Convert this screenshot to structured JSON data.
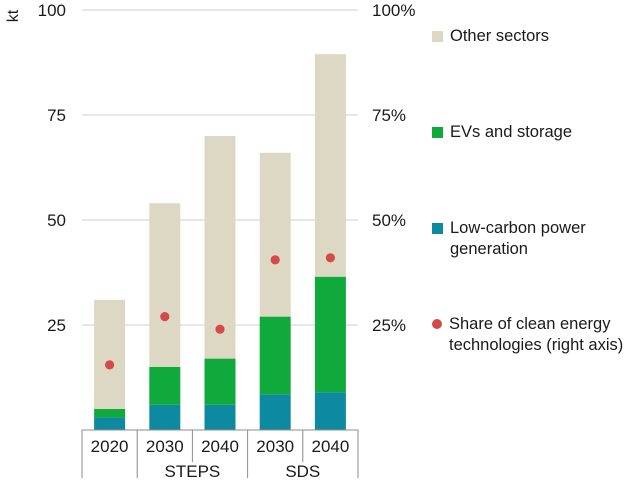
{
  "chart_data": {
    "type": "bar",
    "stacked": true,
    "ylabel": "kt",
    "ylim": [
      0,
      100
    ],
    "yticks": [
      25,
      50,
      75,
      100
    ],
    "y2lim": [
      0,
      100
    ],
    "y2ticks": [
      "25%",
      "50%",
      "75%",
      "100%"
    ],
    "categories": [
      "2020",
      "2030",
      "2040",
      "2030",
      "2040"
    ],
    "groups": [
      {
        "label": "",
        "span": [
          0,
          0
        ]
      },
      {
        "label": "STEPS",
        "span": [
          1,
          2
        ]
      },
      {
        "label": "SDS",
        "span": [
          3,
          4
        ]
      }
    ],
    "series": [
      {
        "name": "Low-carbon power generation",
        "color": "#0e8aa0",
        "values": [
          3,
          6,
          6,
          8.5,
          9
        ]
      },
      {
        "name": "EVs and storage",
        "color": "#10aa3c",
        "values": [
          2,
          9,
          11,
          18.5,
          27.5
        ]
      },
      {
        "name": "Other sectors",
        "color": "#ddd8c4",
        "values": [
          26,
          39,
          53,
          39,
          53
        ]
      }
    ],
    "line_series": {
      "name": "Share of clean energy technologies (right axis)",
      "color": "#d44a4a",
      "axis": "right",
      "values": [
        15.5,
        27,
        24,
        40.5,
        41
      ]
    },
    "grid": true
  },
  "legend": [
    {
      "label": "Other sectors",
      "color": "#ddd8c4",
      "shape": "square"
    },
    {
      "label": "EVs and storage",
      "color": "#10aa3c",
      "shape": "square"
    },
    {
      "label": "Low-carbon power generation",
      "color": "#0e8aa0",
      "shape": "square"
    },
    {
      "label": "Share of clean energy technologies (right axis)",
      "color": "#d44a4a",
      "shape": "dot"
    }
  ]
}
